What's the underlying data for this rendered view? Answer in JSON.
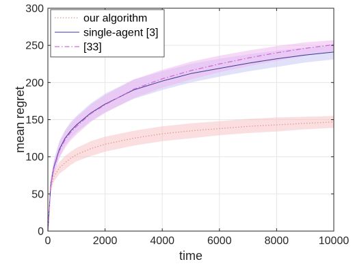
{
  "chart_data": {
    "type": "line",
    "title": "",
    "xlabel": "time",
    "ylabel": "mean regret",
    "xlim": [
      0,
      10000
    ],
    "ylim": [
      0,
      300
    ],
    "xticks": [
      0,
      2000,
      4000,
      6000,
      8000,
      10000
    ],
    "yticks": [
      0,
      50,
      100,
      150,
      200,
      250,
      300
    ],
    "xtick_labels": [
      "0",
      "2000",
      "4000",
      "6000",
      "8000",
      "10000"
    ],
    "ytick_labels": [
      "0",
      "50",
      "100",
      "150",
      "200",
      "250",
      "300"
    ],
    "grid": true,
    "legend_position": "top-left",
    "series": [
      {
        "name": "our algorithm",
        "color": "#e5958f",
        "band_color": "#f6c2c6",
        "line_style": "dotted",
        "x": [
          0,
          100,
          200,
          400,
          600,
          800,
          1000,
          1500,
          2000,
          3000,
          4000,
          5000,
          6000,
          7000,
          8000,
          9000,
          10000
        ],
        "y": [
          0,
          58,
          73,
          85,
          92,
          98,
          103,
          111,
          117,
          125,
          131,
          135,
          138,
          141,
          143,
          145,
          147
        ],
        "lower": [
          0,
          52,
          66,
          77,
          83,
          89,
          94,
          101,
          107,
          115,
          121,
          125,
          129,
          132,
          134,
          137,
          139
        ],
        "upper": [
          0,
          64,
          80,
          93,
          101,
          107,
          112,
          121,
          127,
          135,
          141,
          145,
          148,
          151,
          153,
          154,
          155
        ]
      },
      {
        "name": "single-agent [3]",
        "color": "#3b3a8f",
        "band_color": "#c8c9f5",
        "line_style": "solid",
        "x": [
          0,
          100,
          200,
          400,
          600,
          800,
          1000,
          1500,
          2000,
          3000,
          4000,
          5000,
          6000,
          7000,
          8000,
          9000,
          10000
        ],
        "y": [
          0,
          63,
          85,
          110,
          125,
          135,
          143,
          159,
          171,
          190,
          202,
          212,
          219,
          226,
          232,
          237,
          241
        ],
        "lower": [
          0,
          56,
          77,
          100,
          115,
          125,
          133,
          148,
          160,
          178,
          190,
          200,
          208,
          215,
          221,
          227,
          231
        ],
        "upper": [
          0,
          70,
          94,
          121,
          136,
          147,
          155,
          172,
          185,
          204,
          215,
          225,
          232,
          238,
          243,
          247,
          250
        ]
      },
      {
        "name": "[33]",
        "color": "#d26ad6",
        "band_color": "#eeb8f0",
        "line_style": "dashdot",
        "x": [
          0,
          100,
          200,
          400,
          600,
          800,
          1000,
          1500,
          2000,
          3000,
          4000,
          5000,
          6000,
          7000,
          8000,
          9000,
          10000
        ],
        "y": [
          0,
          62,
          83,
          108,
          123,
          133,
          141,
          158,
          170,
          191,
          205,
          216,
          225,
          233,
          240,
          246,
          251
        ],
        "lower": [
          0,
          55,
          75,
          98,
          112,
          122,
          130,
          147,
          159,
          179,
          193,
          204,
          214,
          222,
          229,
          236,
          242
        ],
        "upper": [
          0,
          69,
          92,
          119,
          134,
          145,
          153,
          170,
          183,
          204,
          217,
          228,
          236,
          243,
          249,
          254,
          257
        ]
      }
    ]
  }
}
